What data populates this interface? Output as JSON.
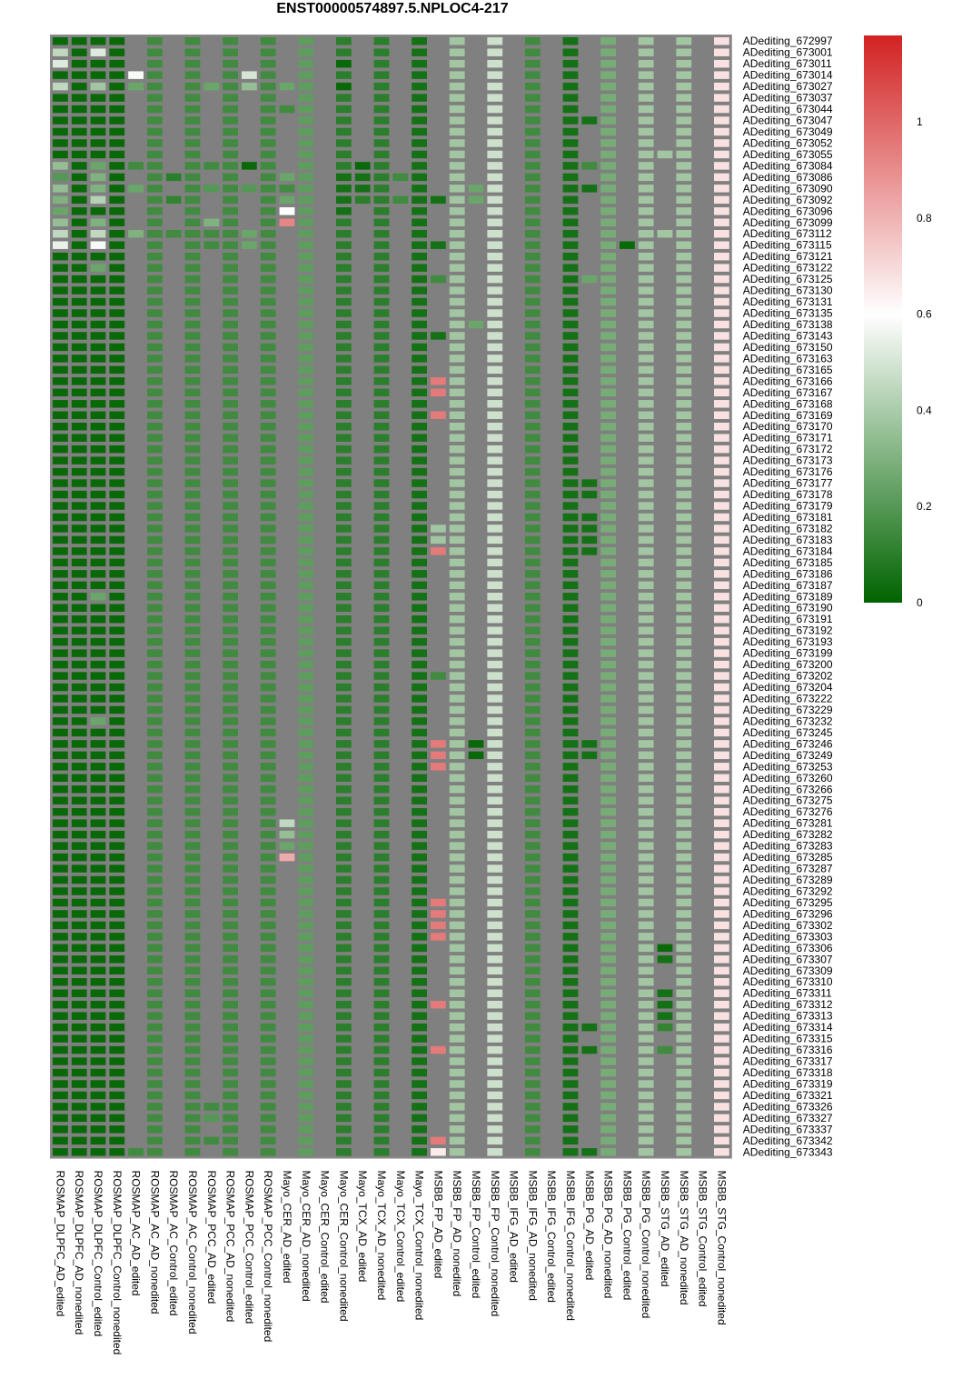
{
  "chart_data": {
    "type": "heatmap",
    "title": "ENST00000574897.5.NPLOC4-217",
    "columns": [
      "ROSMAP_DLPFC_AD_edited",
      "ROSMAP_DLPFC_AD_nonedited",
      "ROSMAP_DLPFC_Control_edited",
      "ROSMAP_DLPFC_Control_nonedited",
      "ROSMAP_AC_AD_edited",
      "ROSMAP_AC_AD_nonedited",
      "ROSMAP_AC_Control_edited",
      "ROSMAP_AC_Control_nonedited",
      "ROSMAP_PCC_AD_edited",
      "ROSMAP_PCC_AD_nonedited",
      "ROSMAP_PCC_Control_edited",
      "ROSMAP_PCC_Control_nonedited",
      "Mayo_CER_AD_edited",
      "Mayo_CER_AD_nonedited",
      "Mayo_CER_Control_edited",
      "Mayo_CER_Control_nonedited",
      "Mayo_TCX_AD_edited",
      "Mayo_TCX_AD_nonedited",
      "Mayo_TCX_Control_edited",
      "Mayo_TCX_Control_nonedited",
      "MSBB_FP_AD_edited",
      "MSBB_FP_AD_nonedited",
      "MSBB_FP_Control_edited",
      "MSBB_FP_Control_nonedited",
      "MSBB_IFG_AD_edited",
      "MSBB_IFG_AD_nonedited",
      "MSBB_IFG_Control_edited",
      "MSBB_IFG_Control_nonedited",
      "MSBB_PG_AD_edited",
      "MSBB_PG_AD_nonedited",
      "MSBB_PG_Control_edited",
      "MSBB_PG_Control_nonedited",
      "MSBB_STG_AD_edited",
      "MSBB_STG_AD_nonedited",
      "MSBB_STG_Control_edited",
      "MSBB_STG_Control_nonedited"
    ],
    "rows": [
      "ADediting_672997",
      "ADediting_673001",
      "ADediting_673011",
      "ADediting_673014",
      "ADediting_673027",
      "ADediting_673037",
      "ADediting_673044",
      "ADediting_673047",
      "ADediting_673049",
      "ADediting_673052",
      "ADediting_673055",
      "ADediting_673084",
      "ADediting_673086",
      "ADediting_673090",
      "ADediting_673092",
      "ADediting_673096",
      "ADediting_673099",
      "ADediting_673112",
      "ADediting_673115",
      "ADediting_673121",
      "ADediting_673122",
      "ADediting_673125",
      "ADediting_673130",
      "ADediting_673131",
      "ADediting_673135",
      "ADediting_673138",
      "ADediting_673143",
      "ADediting_673150",
      "ADediting_673163",
      "ADediting_673165",
      "ADediting_673166",
      "ADediting_673167",
      "ADediting_673168",
      "ADediting_673169",
      "ADediting_673170",
      "ADediting_673171",
      "ADediting_673172",
      "ADediting_673173",
      "ADediting_673176",
      "ADediting_673177",
      "ADediting_673178",
      "ADediting_673179",
      "ADediting_673181",
      "ADediting_673182",
      "ADediting_673183",
      "ADediting_673184",
      "ADediting_673185",
      "ADediting_673186",
      "ADediting_673187",
      "ADediting_673189",
      "ADediting_673190",
      "ADediting_673191",
      "ADediting_673192",
      "ADediting_673193",
      "ADediting_673199",
      "ADediting_673200",
      "ADediting_673202",
      "ADediting_673204",
      "ADediting_673222",
      "ADediting_673229",
      "ADediting_673232",
      "ADediting_673245",
      "ADediting_673246",
      "ADediting_673249",
      "ADediting_673253",
      "ADediting_673260",
      "ADediting_673266",
      "ADediting_673275",
      "ADediting_673276",
      "ADediting_673281",
      "ADediting_673282",
      "ADediting_673283",
      "ADediting_673285",
      "ADediting_673287",
      "ADediting_673289",
      "ADediting_673292",
      "ADediting_673295",
      "ADediting_673296",
      "ADediting_673302",
      "ADediting_673303",
      "ADediting_673306",
      "ADediting_673307",
      "ADediting_673309",
      "ADediting_673310",
      "ADediting_673311",
      "ADediting_673312",
      "ADediting_673313",
      "ADediting_673314",
      "ADediting_673315",
      "ADediting_673316",
      "ADediting_673317",
      "ADediting_673318",
      "ADediting_673319",
      "ADediting_673321",
      "ADediting_673326",
      "ADediting_673327",
      "ADediting_673337",
      "ADediting_673342",
      "ADediting_673343"
    ],
    "column_defaults": [
      0.02,
      0.02,
      0.02,
      0.02,
      null,
      0.15,
      null,
      0.15,
      null,
      0.15,
      null,
      0.15,
      null,
      0.22,
      null,
      0.1,
      null,
      0.1,
      null,
      0.05,
      null,
      0.38,
      null,
      0.48,
      null,
      0.15,
      null,
      0.05,
      null,
      0.28,
      null,
      0.38,
      null,
      0.38,
      null,
      0.68
    ],
    "overrides": [
      [
        1,
        0,
        0.45
      ],
      [
        1,
        2,
        0.52
      ],
      [
        2,
        0,
        0.52
      ],
      [
        2,
        15,
        0.02
      ],
      [
        3,
        4,
        0.58
      ],
      [
        3,
        10,
        0.5
      ],
      [
        4,
        0,
        0.45
      ],
      [
        4,
        2,
        0.38
      ],
      [
        4,
        4,
        0.25
      ],
      [
        4,
        8,
        0.25
      ],
      [
        4,
        10,
        0.35
      ],
      [
        4,
        12,
        0.25
      ],
      [
        4,
        15,
        0.02
      ],
      [
        6,
        12,
        0.15
      ],
      [
        7,
        28,
        0.05
      ],
      [
        10,
        32,
        0.38
      ],
      [
        11,
        0,
        0.35
      ],
      [
        11,
        2,
        0.25
      ],
      [
        11,
        4,
        0.15
      ],
      [
        11,
        8,
        0.15
      ],
      [
        11,
        10,
        0.02
      ],
      [
        11,
        16,
        0.02
      ],
      [
        11,
        28,
        0.15
      ],
      [
        12,
        0,
        0.2
      ],
      [
        12,
        2,
        0.3
      ],
      [
        12,
        6,
        0.1
      ],
      [
        12,
        12,
        0.25
      ],
      [
        12,
        15,
        0.05
      ],
      [
        12,
        16,
        0.05
      ],
      [
        12,
        18,
        0.15
      ],
      [
        13,
        0,
        0.35
      ],
      [
        13,
        2,
        0.3
      ],
      [
        13,
        4,
        0.25
      ],
      [
        13,
        8,
        0.2
      ],
      [
        13,
        10,
        0.2
      ],
      [
        13,
        12,
        0.15
      ],
      [
        13,
        15,
        0.05
      ],
      [
        13,
        16,
        0.05
      ],
      [
        13,
        22,
        0.25
      ],
      [
        13,
        28,
        0.05
      ],
      [
        14,
        0,
        0.3
      ],
      [
        14,
        2,
        0.42
      ],
      [
        14,
        6,
        0.12
      ],
      [
        14,
        12,
        0.25
      ],
      [
        14,
        15,
        0.05
      ],
      [
        14,
        16,
        0.1
      ],
      [
        14,
        18,
        0.15
      ],
      [
        14,
        20,
        0.05
      ],
      [
        14,
        22,
        0.25
      ],
      [
        15,
        0,
        0.25
      ],
      [
        15,
        12,
        0.6
      ],
      [
        15,
        15,
        0.05
      ],
      [
        16,
        0,
        0.35
      ],
      [
        16,
        2,
        0.3
      ],
      [
        16,
        8,
        0.3
      ],
      [
        16,
        12,
        0.92
      ],
      [
        17,
        0,
        0.45
      ],
      [
        17,
        2,
        0.45
      ],
      [
        17,
        4,
        0.3
      ],
      [
        17,
        6,
        0.15
      ],
      [
        17,
        8,
        0.15
      ],
      [
        17,
        10,
        0.25
      ],
      [
        17,
        32,
        0.38
      ],
      [
        18,
        0,
        0.55
      ],
      [
        18,
        2,
        0.58
      ],
      [
        18,
        8,
        0.15
      ],
      [
        18,
        10,
        0.25
      ],
      [
        18,
        20,
        0.05
      ],
      [
        18,
        30,
        0.02
      ],
      [
        20,
        2,
        0.25
      ],
      [
        21,
        20,
        0.15
      ],
      [
        21,
        28,
        0.25
      ],
      [
        25,
        22,
        0.25
      ],
      [
        26,
        20,
        0.05
      ],
      [
        30,
        20,
        0.95
      ],
      [
        31,
        20,
        0.95
      ],
      [
        33,
        20,
        0.95
      ],
      [
        39,
        28,
        0.05
      ],
      [
        40,
        28,
        0.05
      ],
      [
        42,
        28,
        0.05
      ],
      [
        43,
        20,
        0.38
      ],
      [
        43,
        28,
        0.05
      ],
      [
        44,
        20,
        0.38
      ],
      [
        44,
        28,
        0.05
      ],
      [
        45,
        20,
        0.95
      ],
      [
        45,
        28,
        0.05
      ],
      [
        49,
        2,
        0.25
      ],
      [
        56,
        20,
        0.15
      ],
      [
        60,
        2,
        0.25
      ],
      [
        62,
        20,
        0.95
      ],
      [
        62,
        22,
        0.02
      ],
      [
        62,
        28,
        0.05
      ],
      [
        63,
        20,
        0.95
      ],
      [
        63,
        22,
        0.02
      ],
      [
        63,
        28,
        0.05
      ],
      [
        64,
        20,
        0.95
      ],
      [
        69,
        12,
        0.45
      ],
      [
        70,
        12,
        0.35
      ],
      [
        71,
        12,
        0.25
      ],
      [
        72,
        12,
        0.82
      ],
      [
        76,
        20,
        0.95
      ],
      [
        77,
        20,
        0.95
      ],
      [
        78,
        20,
        0.95
      ],
      [
        79,
        20,
        0.95
      ],
      [
        80,
        32,
        0.02
      ],
      [
        81,
        32,
        0.05
      ],
      [
        84,
        32,
        0.05
      ],
      [
        85,
        20,
        0.95
      ],
      [
        85,
        32,
        0.05
      ],
      [
        86,
        32,
        0.05
      ],
      [
        87,
        28,
        0.05
      ],
      [
        87,
        32,
        0.12
      ],
      [
        89,
        20,
        0.95
      ],
      [
        89,
        28,
        0.05
      ],
      [
        89,
        32,
        0.15
      ],
      [
        94,
        8,
        0.15
      ],
      [
        95,
        8,
        0.2
      ],
      [
        97,
        8,
        0.15
      ],
      [
        97,
        20,
        0.95
      ],
      [
        98,
        4,
        0.15
      ],
      [
        98,
        20,
        0.65
      ],
      [
        98,
        28,
        0.05
      ]
    ],
    "colorbar": {
      "min": 0,
      "max": 1.18,
      "ticks": [
        0,
        0.2,
        0.4,
        0.6,
        0.8,
        1
      ],
      "colors": [
        "#006400",
        "#ffffff",
        "#d22222"
      ],
      "midpoint": 0.6
    },
    "na_color": "#808080"
  }
}
